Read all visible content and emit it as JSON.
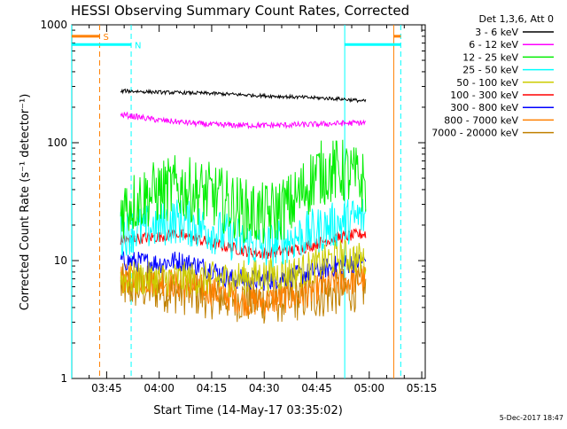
{
  "chart_data": {
    "type": "line",
    "title": "HESSI Observing Summary Count Rates, Corrected",
    "xlabel": "Start Time (14-May-17 03:35:02)",
    "ylabel": "Corrected Count Rate (s⁻¹ detector⁻¹)",
    "yscale": "log",
    "ylim": [
      1,
      1000
    ],
    "xlim": [
      "03:35",
      "05:16"
    ],
    "x_ticks": [
      "03:45",
      "04:00",
      "04:15",
      "04:30",
      "04:45",
      "05:00",
      "05:15"
    ],
    "y_ticks": [
      "1",
      "10",
      "100",
      "1000"
    ],
    "legend_title": "Det 1,3,6, Att 0",
    "legend_position": "outside-right",
    "series": [
      {
        "name": "3 - 6 keV",
        "color": "#000000",
        "x": [
          "03:49",
          "03:50",
          "04:00",
          "04:15",
          "04:30",
          "04:45",
          "04:52",
          "04:59"
        ],
        "values": [
          270,
          275,
          268,
          262,
          250,
          240,
          235,
          225
        ]
      },
      {
        "name": "6 - 12 keV",
        "color": "#ff00ff",
        "x": [
          "03:49",
          "03:50",
          "04:00",
          "04:15",
          "04:30",
          "04:45",
          "04:52",
          "04:59"
        ],
        "values": [
          170,
          172,
          155,
          142,
          140,
          143,
          146,
          148
        ]
      },
      {
        "name": "12 - 25 keV",
        "color": "#00ee00",
        "x": [
          "03:49",
          "03:55",
          "04:00",
          "04:05",
          "04:15",
          "04:25",
          "04:30",
          "04:38",
          "04:45",
          "04:52",
          "04:59"
        ],
        "values": [
          28,
          34,
          38,
          42,
          36,
          26,
          24,
          30,
          55,
          58,
          45
        ]
      },
      {
        "name": "25 - 50 keV",
        "color": "#00ffff",
        "x": [
          "03:49",
          "04:00",
          "04:05",
          "04:15",
          "04:25",
          "04:30",
          "04:40",
          "04:50",
          "04:59"
        ],
        "values": [
          17,
          20,
          22,
          18,
          14,
          13,
          16,
          20,
          24
        ]
      },
      {
        "name": "50 - 100 keV",
        "color": "#cccc00",
        "x": [
          "03:49",
          "04:20",
          "04:40",
          "04:52",
          "04:59"
        ],
        "values": [
          7,
          7,
          8,
          11,
          10
        ]
      },
      {
        "name": "100 - 300 keV",
        "color": "#ff0000",
        "x": [
          "03:49",
          "03:55",
          "04:00",
          "04:05",
          "04:15",
          "04:25",
          "04:30",
          "04:40",
          "04:50",
          "04:59"
        ],
        "values": [
          15,
          15.5,
          16,
          17,
          14,
          12,
          11.5,
          12.5,
          15.5,
          17
        ]
      },
      {
        "name": "300 - 800 keV",
        "color": "#0000ff",
        "x": [
          "03:49",
          "04:00",
          "04:05",
          "04:15",
          "04:20",
          "04:30",
          "04:40",
          "04:50",
          "04:59"
        ],
        "values": [
          10,
          9.5,
          10,
          8.5,
          7,
          6.8,
          7.5,
          9,
          10
        ]
      },
      {
        "name": "800 - 7000 keV",
        "color": "#ff8000",
        "x": [
          "03:49",
          "04:00",
          "04:15",
          "04:25",
          "04:30",
          "04:40",
          "04:50",
          "04:59"
        ],
        "values": [
          7,
          6.8,
          5.5,
          4.5,
          4.5,
          5,
          6.5,
          7
        ]
      },
      {
        "name": "7000 - 20000 keV",
        "color": "#c08000",
        "x": [
          "03:49",
          "04:00",
          "04:15",
          "04:30",
          "04:45",
          "04:59"
        ],
        "values": [
          6,
          5.8,
          5,
          4.5,
          5,
          6
        ]
      }
    ],
    "markers": [
      {
        "label": "S",
        "color": "#ff8000",
        "time": "03:43"
      },
      {
        "label": "N",
        "color": "#00ffff",
        "time": "03:52"
      }
    ],
    "vertical_lines": [
      {
        "time": "03:35",
        "color": "#00ffff",
        "dashed": false
      },
      {
        "time": "03:43",
        "color": "#ff8000",
        "dashed": true
      },
      {
        "time": "03:52",
        "color": "#00ffff",
        "dashed": true
      },
      {
        "time": "04:53",
        "color": "#00ffff",
        "dashed": false
      },
      {
        "time": "05:07",
        "color": "#ff8000",
        "dashed": false
      },
      {
        "time": "05:09",
        "color": "#00ffff",
        "dashed": true
      }
    ],
    "flag_bars": [
      {
        "color": "#ff8000",
        "level": 800,
        "from": "03:35",
        "to": "03:43"
      },
      {
        "color": "#00ffff",
        "level": 680,
        "from": "03:35",
        "to": "03:52"
      },
      {
        "color": "#00ffff",
        "level": 680,
        "from": "04:53",
        "to": "05:09"
      },
      {
        "color": "#ff8000",
        "level": 800,
        "from": "05:07",
        "to": "05:09"
      }
    ],
    "footer_timestamp": "5-Dec-2017 18:47"
  }
}
